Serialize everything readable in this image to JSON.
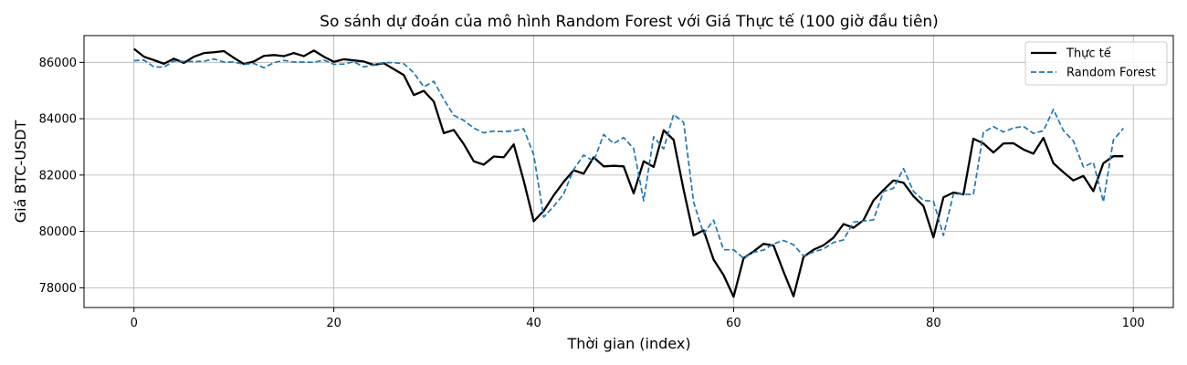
{
  "chart_data": {
    "type": "line",
    "title": "So sánh dự đoán của mô hình Random Forest với Giá Thực tế (100 giờ đầu tiên)",
    "xlabel": "Thời gian (index)",
    "ylabel": "Giá BTC-USDT",
    "xlim": [
      -5,
      104
    ],
    "ylim": [
      77300,
      86950
    ],
    "xticks": [
      0,
      20,
      40,
      60,
      80,
      100
    ],
    "yticks": [
      78000,
      80000,
      82000,
      84000,
      86000
    ],
    "grid": true,
    "legend_position": "top-right",
    "series": [
      {
        "name": "Thực tế",
        "color": "#000000",
        "style": "solid",
        "values": [
          86480,
          86200,
          86080,
          85950,
          86130,
          85980,
          86200,
          86330,
          86360,
          86400,
          86160,
          85940,
          86030,
          86230,
          86260,
          86220,
          86330,
          86220,
          86420,
          86200,
          86020,
          86110,
          86070,
          86030,
          85910,
          85970,
          85760,
          85550,
          84840,
          84990,
          84610,
          83490,
          83600,
          83100,
          82490,
          82370,
          82660,
          82630,
          83090,
          81800,
          80360,
          80730,
          81280,
          81760,
          82170,
          82050,
          82630,
          82310,
          82330,
          82310,
          81350,
          82490,
          82290,
          83590,
          83250,
          81480,
          79860,
          80040,
          79000,
          78450,
          77680,
          79050,
          79290,
          79560,
          79500,
          78570,
          77700,
          79100,
          79350,
          79510,
          79780,
          80260,
          80130,
          80400,
          81100,
          81470,
          81810,
          81730,
          81250,
          80900,
          79790,
          81210,
          81380,
          81310,
          83290,
          83120,
          82800,
          83120,
          83130,
          82910,
          82760,
          83320,
          82420,
          82100,
          81810,
          81970,
          81430,
          82420,
          82670,
          82670
        ]
      },
      {
        "name": "Random Forest",
        "color": "#1f77b4",
        "style": "dashed",
        "values": [
          86060,
          86080,
          85840,
          85830,
          86050,
          86030,
          86030,
          86040,
          86120,
          86010,
          86010,
          85930,
          85960,
          85810,
          85990,
          86070,
          86010,
          86010,
          86000,
          86080,
          85930,
          85940,
          86020,
          85840,
          85910,
          85990,
          85990,
          85950,
          85630,
          85130,
          85330,
          84690,
          84120,
          83940,
          83670,
          83500,
          83560,
          83540,
          83570,
          83640,
          82720,
          80510,
          80890,
          81330,
          82200,
          82710,
          82490,
          83440,
          83120,
          83330,
          82940,
          81090,
          83360,
          82930,
          84150,
          83870,
          81040,
          79920,
          80400,
          79350,
          79350,
          79050,
          79260,
          79340,
          79560,
          79680,
          79530,
          79130,
          79270,
          79380,
          79610,
          79700,
          80330,
          80370,
          80410,
          81420,
          81530,
          82230,
          81420,
          81100,
          81070,
          79860,
          81330,
          81320,
          81310,
          83520,
          83720,
          83530,
          83670,
          83730,
          83480,
          83570,
          84330,
          83580,
          83210,
          82290,
          82450,
          81050,
          83240,
          83660
        ]
      }
    ]
  }
}
